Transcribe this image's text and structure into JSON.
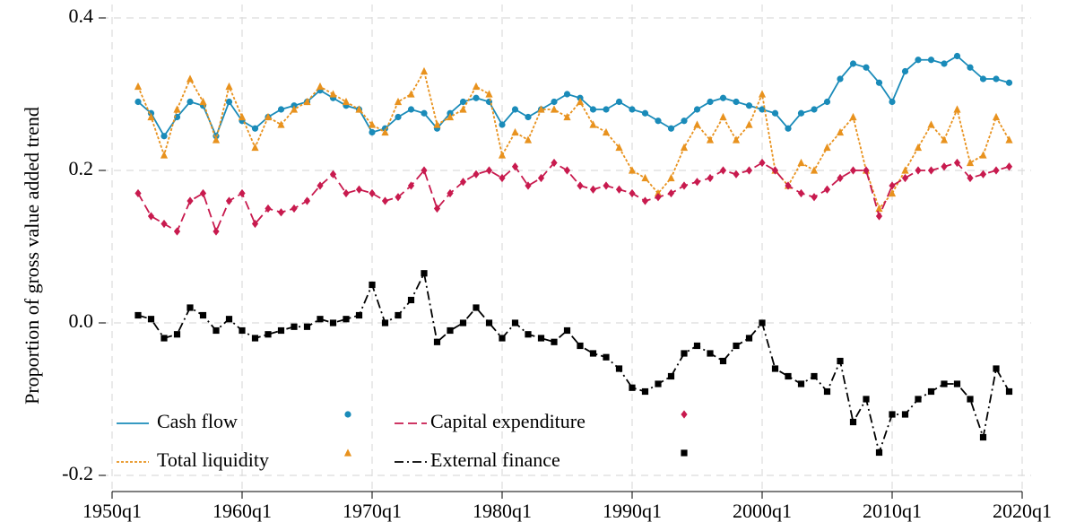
{
  "chart_data": {
    "type": "line",
    "y_label": "Proportion of gross value added trend",
    "x": [
      1952,
      1953,
      1954,
      1955,
      1956,
      1957,
      1958,
      1959,
      1960,
      1961,
      1962,
      1963,
      1964,
      1965,
      1966,
      1967,
      1968,
      1969,
      1970,
      1971,
      1972,
      1973,
      1974,
      1975,
      1976,
      1977,
      1978,
      1979,
      1980,
      1981,
      1982,
      1983,
      1984,
      1985,
      1986,
      1987,
      1988,
      1989,
      1990,
      1991,
      1992,
      1993,
      1994,
      1995,
      1996,
      1997,
      1998,
      1999,
      2000,
      2001,
      2002,
      2003,
      2004,
      2005,
      2006,
      2007,
      2008,
      2009,
      2010,
      2011,
      2012,
      2013,
      2014,
      2015,
      2016,
      2017,
      2018,
      2019
    ],
    "series": [
      {
        "name": "Cash flow",
        "color": "#1a8bb9",
        "dash": "solid",
        "marker": "circle",
        "values": [
          0.29,
          0.275,
          0.245,
          0.27,
          0.29,
          0.285,
          0.245,
          0.29,
          0.265,
          0.255,
          0.27,
          0.28,
          0.285,
          0.29,
          0.305,
          0.295,
          0.285,
          0.28,
          0.25,
          0.255,
          0.27,
          0.28,
          0.275,
          0.255,
          0.275,
          0.29,
          0.295,
          0.29,
          0.26,
          0.28,
          0.27,
          0.28,
          0.29,
          0.3,
          0.295,
          0.28,
          0.28,
          0.29,
          0.28,
          0.275,
          0.265,
          0.255,
          0.265,
          0.28,
          0.29,
          0.295,
          0.29,
          0.285,
          0.28,
          0.275,
          0.255,
          0.275,
          0.28,
          0.29,
          0.32,
          0.34,
          0.335,
          0.315,
          0.29,
          0.33,
          0.345,
          0.345,
          0.34,
          0.35,
          0.335,
          0.32,
          0.32,
          0.315
        ]
      },
      {
        "name": "Total liquidity",
        "color": "#e8921e",
        "dash": "dotted",
        "marker": "triangle",
        "values": [
          0.31,
          0.27,
          0.22,
          0.28,
          0.32,
          0.29,
          0.24,
          0.31,
          0.27,
          0.23,
          0.27,
          0.26,
          0.28,
          0.29,
          0.31,
          0.3,
          0.29,
          0.28,
          0.26,
          0.25,
          0.29,
          0.3,
          0.33,
          0.26,
          0.27,
          0.28,
          0.31,
          0.3,
          0.22,
          0.25,
          0.24,
          0.28,
          0.28,
          0.27,
          0.29,
          0.26,
          0.25,
          0.23,
          0.2,
          0.19,
          0.17,
          0.19,
          0.23,
          0.26,
          0.24,
          0.27,
          0.24,
          0.26,
          0.3,
          0.2,
          0.18,
          0.21,
          0.2,
          0.23,
          0.25,
          0.27,
          0.2,
          0.15,
          0.17,
          0.2,
          0.23,
          0.26,
          0.24,
          0.28,
          0.21,
          0.22,
          0.27,
          0.24
        ]
      },
      {
        "name": "Capital expenditure",
        "color": "#c81a4e",
        "dash": "dashed",
        "marker": "diamond",
        "values": [
          0.17,
          0.14,
          0.13,
          0.12,
          0.16,
          0.17,
          0.12,
          0.16,
          0.17,
          0.13,
          0.15,
          0.145,
          0.15,
          0.16,
          0.18,
          0.195,
          0.17,
          0.175,
          0.17,
          0.16,
          0.165,
          0.18,
          0.2,
          0.15,
          0.17,
          0.185,
          0.195,
          0.2,
          0.19,
          0.205,
          0.18,
          0.19,
          0.21,
          0.2,
          0.18,
          0.175,
          0.18,
          0.175,
          0.17,
          0.16,
          0.165,
          0.17,
          0.18,
          0.185,
          0.19,
          0.2,
          0.195,
          0.2,
          0.21,
          0.2,
          0.18,
          0.17,
          0.165,
          0.175,
          0.19,
          0.2,
          0.2,
          0.14,
          0.18,
          0.19,
          0.2,
          0.2,
          0.205,
          0.21,
          0.19,
          0.195,
          0.2,
          0.205
        ]
      },
      {
        "name": "External finance",
        "color": "#000000",
        "dash": "dashdot",
        "marker": "square",
        "values": [
          0.01,
          0.005,
          -0.02,
          -0.015,
          0.02,
          0.01,
          -0.01,
          0.005,
          -0.01,
          -0.02,
          -0.015,
          -0.01,
          -0.005,
          -0.005,
          0.005,
          0,
          0.005,
          0.01,
          0.05,
          0,
          0.01,
          0.03,
          0.065,
          -0.025,
          -0.01,
          0,
          0.02,
          0,
          -0.02,
          0,
          -0.015,
          -0.02,
          -0.025,
          -0.01,
          -0.03,
          -0.04,
          -0.045,
          -0.06,
          -0.085,
          -0.09,
          -0.08,
          -0.07,
          -0.04,
          -0.03,
          -0.04,
          -0.05,
          -0.03,
          -0.02,
          0,
          -0.06,
          -0.07,
          -0.08,
          -0.07,
          -0.09,
          -0.05,
          -0.13,
          -0.1,
          -0.17,
          -0.12,
          -0.12,
          -0.1,
          -0.09,
          -0.08,
          -0.08,
          -0.1,
          -0.15,
          -0.06,
          -0.09
        ]
      }
    ],
    "xlim": [
      1950,
      2020
    ],
    "xticks": [
      {
        "value": 1950,
        "label": "1950q1"
      },
      {
        "value": 1960,
        "label": "1960q1"
      },
      {
        "value": 1970,
        "label": "1970q1"
      },
      {
        "value": 1980,
        "label": "1980q1"
      },
      {
        "value": 1990,
        "label": "1990q1"
      },
      {
        "value": 2000,
        "label": "2000q1"
      },
      {
        "value": 2010,
        "label": "2010q1"
      },
      {
        "value": 2020,
        "label": "2020q1"
      }
    ],
    "ylim": [
      -0.22,
      0.42
    ],
    "yticks": [
      -0.2,
      {
        "value": 0,
        "label": "0.0"
      },
      0.2,
      0.4
    ],
    "grid": true,
    "legend": "lower left"
  }
}
